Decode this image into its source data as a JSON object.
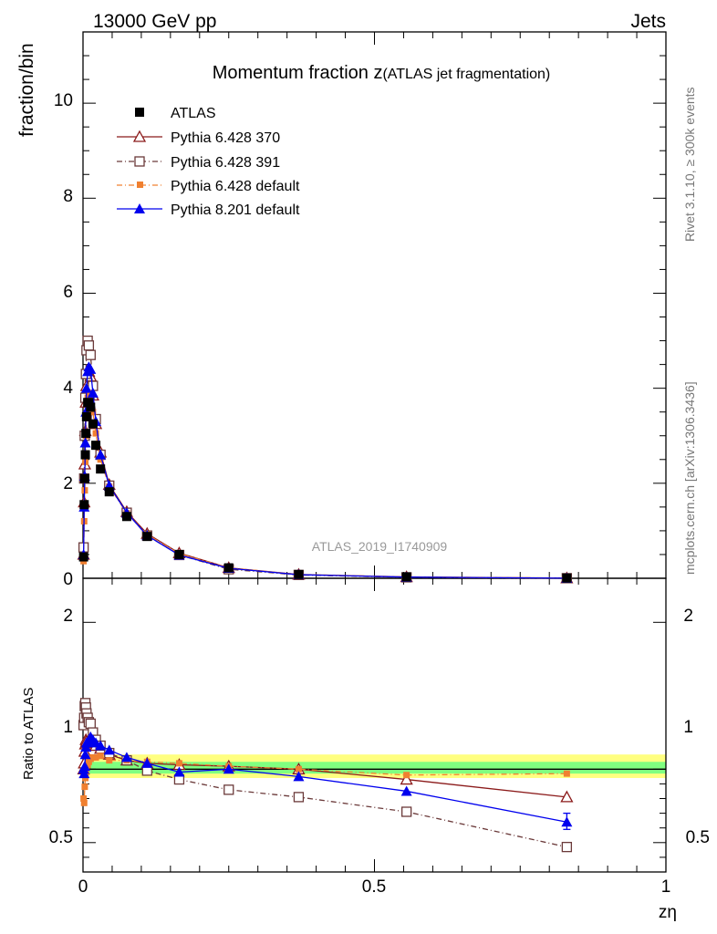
{
  "header": {
    "left": "13000 GeV pp",
    "right": "Jets"
  },
  "side_labels": {
    "rivet": "Rivet 3.1.10, ≥ 300k events",
    "mcplots": "mcplots.cern.ch [arXiv:1306.3436]"
  },
  "chart_data": {
    "type": "scatter",
    "title_main": "Momentum fraction z",
    "title_sub": "(ATLAS jet fragmentation)",
    "ylabel": "fraction/bin",
    "ratio_ylabel": "Ratio to ATLAS",
    "xlabel": "zη",
    "analysis_id": "ATLAS_2019_I1740909",
    "xlim": [
      0,
      1
    ],
    "ylim": [
      0,
      11.5
    ],
    "ratio_ylim": [
      0.3,
      2.3
    ],
    "main_yticks": [
      "0",
      "2",
      "4",
      "6",
      "8",
      "10"
    ],
    "ratio_yticks": [
      "0.5",
      "1",
      "2"
    ],
    "xticks": [
      "0",
      "0.5",
      "1"
    ],
    "x": [
      0.001,
      0.002,
      0.003,
      0.004,
      0.005,
      0.006,
      0.008,
      0.01,
      0.013,
      0.017,
      0.022,
      0.03,
      0.045,
      0.075,
      0.11,
      0.165,
      0.25,
      0.37,
      0.555,
      0.83
    ],
    "series": [
      {
        "name": "ATLAS",
        "color": "#000000",
        "marker": "filled-square",
        "values": [
          0.45,
          1.55,
          2.1,
          2.6,
          3.05,
          3.4,
          3.7,
          3.7,
          3.6,
          3.25,
          2.8,
          2.3,
          1.82,
          1.3,
          0.88,
          0.5,
          0.22,
          0.08,
          0.03,
          0.005
        ]
      },
      {
        "name": "Pythia 6.428 370",
        "color": "#8b1a1a",
        "marker": "open-triangle",
        "values": [
          0.5,
          1.6,
          2.4,
          3.1,
          3.7,
          4.05,
          4.3,
          4.35,
          4.25,
          3.85,
          3.25,
          2.65,
          1.97,
          1.4,
          0.94,
          0.53,
          0.22,
          0.079,
          0.028,
          0.004
        ]
      },
      {
        "name": "Pythia 6.428 391",
        "color": "#6b3a3a",
        "marker": "open-square",
        "values": [
          0.65,
          2.1,
          3.0,
          3.8,
          4.3,
          4.8,
          5.0,
          4.9,
          4.7,
          4.05,
          3.35,
          2.6,
          1.95,
          1.38,
          0.9,
          0.49,
          0.19,
          0.07,
          0.02,
          0.002
        ]
      },
      {
        "name": "Pythia 6.428 default",
        "color": "#f08030",
        "marker": "filled-square-small",
        "values": [
          0.36,
          1.2,
          1.85,
          2.45,
          3.0,
          3.45,
          3.8,
          3.9,
          3.85,
          3.5,
          3.05,
          2.5,
          1.93,
          1.37,
          0.92,
          0.52,
          0.22,
          0.08,
          0.029,
          0.005
        ]
      },
      {
        "name": "Pythia 8.201 default",
        "color": "#0000ee",
        "marker": "filled-triangle",
        "values": [
          0.5,
          1.5,
          2.15,
          2.85,
          3.5,
          4.0,
          4.35,
          4.45,
          4.4,
          3.9,
          3.3,
          2.6,
          1.95,
          1.38,
          0.9,
          0.49,
          0.21,
          0.076,
          0.025,
          0.003
        ]
      }
    ],
    "ratios": [
      {
        "name": "Pythia 6.428 370",
        "values": [
          1.0,
          1.04,
          1.12,
          1.17,
          1.2,
          1.19,
          1.18,
          1.17,
          1.18,
          1.18,
          1.16,
          1.14,
          1.1,
          1.06,
          1.04,
          1.03,
          1.02,
          1.0,
          0.93,
          0.81
        ]
      },
      {
        "name": "Pythia 6.428 391",
        "values": [
          1.3,
          1.35,
          1.43,
          1.45,
          1.42,
          1.38,
          1.35,
          1.32,
          1.31,
          1.25,
          1.2,
          1.16,
          1.11,
          1.06,
          0.99,
          0.93,
          0.86,
          0.81,
          0.71,
          0.47
        ]
      },
      {
        "name": "Pythia 6.428 default",
        "values": [
          0.8,
          0.77,
          0.88,
          0.94,
          0.98,
          1.02,
          1.03,
          1.05,
          1.07,
          1.08,
          1.08,
          1.09,
          1.06,
          1.06,
          1.05,
          1.04,
          1.02,
          1.0,
          0.96,
          0.97
        ]
      },
      {
        "name": "Pythia 8.201 default",
        "values": [
          1.0,
          0.97,
          1.02,
          1.1,
          1.15,
          1.18,
          1.18,
          1.2,
          1.22,
          1.2,
          1.18,
          1.16,
          1.13,
          1.08,
          1.04,
          0.98,
          1.0,
          0.95,
          0.85,
          0.64
        ]
      }
    ],
    "band_colors": {
      "inner": "#80ff80",
      "outer": "#ffff80"
    }
  }
}
